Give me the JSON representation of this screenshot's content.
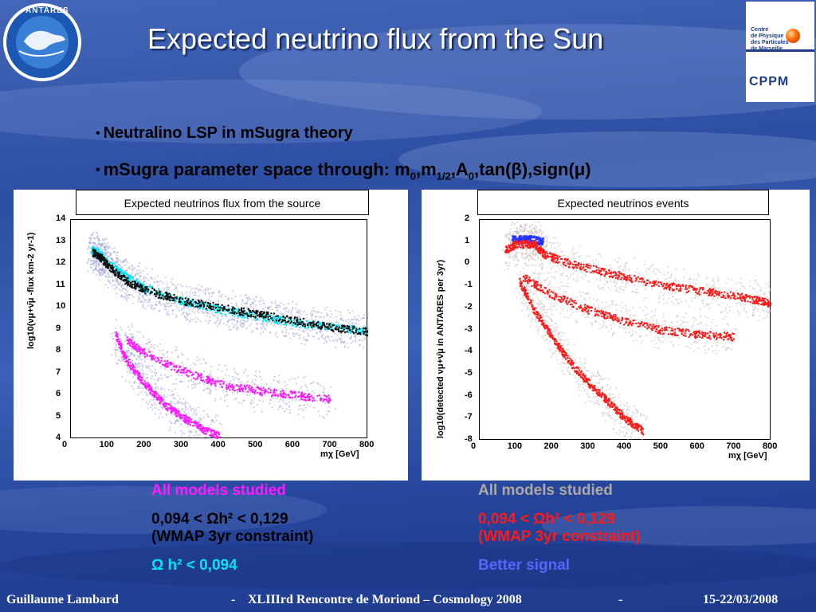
{
  "title": "Expected neutrino flux from the Sun",
  "logos": {
    "left_text": "ANTARES",
    "right_lines": [
      "Centre",
      "de Physique",
      "des Particules",
      "de Marseille"
    ],
    "right_word": "CPPM"
  },
  "bullets": {
    "b1": "Neutralino LSP in mSugra theory",
    "b2_text": "mSugra parameter space through: m",
    "b2_sub0": "0",
    "b2_m": ",m",
    "b2_sub12": "1/2",
    "b2_a": ",A",
    "b2_suba0": "0",
    "b2_tail": ",tan(β),sign(μ)"
  },
  "panels": {
    "left_title": "Expected neutrinos flux from the source",
    "right_title": "Expected neutrinos events"
  },
  "chart_data": [
    {
      "type": "scatter",
      "title": "Expected neutrinos flux from the source",
      "xlabel": "mχ [GeV]",
      "ylabel": "log10(νμ+ν̄μ -flux km-2 yr-1)",
      "xlim": [
        0,
        800
      ],
      "ylim": [
        4,
        14
      ],
      "xticks": [
        "0",
        "100",
        "200",
        "300",
        "400",
        "500",
        "600",
        "700",
        "800"
      ],
      "yticks": [
        "4",
        "5",
        "6",
        "7",
        "8",
        "9",
        "10",
        "11",
        "12",
        "13",
        "14"
      ],
      "series": [
        {
          "color": "#00e5f0",
          "x": [
            55,
            75,
            100,
            150,
            200,
            300,
            400,
            500,
            600,
            700,
            800
          ],
          "y": [
            12.6,
            12.5,
            12.0,
            11.4,
            10.9,
            10.3,
            9.9,
            9.6,
            9.3,
            9.1,
            8.9
          ]
        },
        {
          "color": "#111111",
          "x": [
            60,
            80,
            100,
            150,
            200,
            300,
            400,
            500,
            600,
            700,
            800
          ],
          "y": [
            12.5,
            12.3,
            11.9,
            11.2,
            10.8,
            10.3,
            10.0,
            9.7,
            9.4,
            9.1,
            8.9
          ]
        },
        {
          "color": "#ff1aff",
          "x": [
            120,
            150,
            200,
            250,
            300,
            350,
            400
          ],
          "y": [
            8.8,
            7.6,
            6.5,
            5.6,
            5.0,
            4.5,
            4.1
          ]
        },
        {
          "color": "#ff1aff",
          "x": [
            150,
            200,
            300,
            400,
            500,
            600,
            700
          ],
          "y": [
            8.5,
            7.9,
            7.1,
            6.5,
            6.2,
            6.0,
            5.8
          ]
        }
      ]
    },
    {
      "type": "scatter",
      "title": "Expected neutrinos events",
      "xlabel": "mχ [GeV]",
      "ylabel": "log10(detected νμ+ν̄μ in ANTARES per 3yr)",
      "xlim": [
        0,
        800
      ],
      "ylim": [
        -8,
        2
      ],
      "xticks": [
        "0",
        "100",
        "200",
        "300",
        "400",
        "500",
        "600",
        "700",
        "800"
      ],
      "yticks": [
        "2",
        "1",
        "0",
        "-1",
        "-2",
        "-3",
        "-4",
        "-5",
        "-6",
        "-7",
        "-8"
      ],
      "series": [
        {
          "color": "#2233ff",
          "x": [
            90,
            120,
            150,
            175
          ],
          "y": [
            1.1,
            1.1,
            1.1,
            1.0
          ]
        },
        {
          "color": "#ff1a1a",
          "x": [
            70,
            100,
            150,
            180,
            250,
            350,
            450,
            550,
            650,
            750,
            800
          ],
          "y": [
            0.6,
            0.9,
            0.9,
            0.4,
            0.0,
            -0.4,
            -0.8,
            -1.1,
            -1.3,
            -1.6,
            -1.8
          ]
        },
        {
          "color": "#ff1a1a",
          "x": [
            110,
            150,
            200,
            250,
            300,
            350,
            400,
            450
          ],
          "y": [
            -0.8,
            -2.1,
            -3.3,
            -4.5,
            -5.4,
            -6.2,
            -7.0,
            -7.6
          ]
        },
        {
          "color": "#ff1a1a",
          "x": [
            120,
            200,
            300,
            400,
            500,
            600,
            700
          ],
          "y": [
            -0.6,
            -1.4,
            -2.1,
            -2.6,
            -3.0,
            -3.2,
            -3.3
          ]
        }
      ]
    }
  ],
  "legend_left": {
    "l1": "All models studied",
    "l2a": "0,094 < Ωh² < 0,129",
    "l2b": "(WMAP 3yr constraint)",
    "l3": "Ω h² < 0,094",
    "c1": "#ff1aff",
    "c2": "#000000",
    "c3": "#00e5f0"
  },
  "legend_right": {
    "l1": "All models studied",
    "l2a": "0,094 < Ωh² < 0,129",
    "l2b": "(WMAP 3yr constraint)",
    "l3": "Better signal",
    "c1": "#b0a8a0",
    "c2": "#ff1a1a",
    "c3": "#5566ff"
  },
  "footer": {
    "author": "Guillaume Lambard",
    "sep1": "-",
    "conf": "XLIIIrd    Rencontre de Moriond – Cosmology 2008",
    "sep2": "-",
    "date": "15-22/03/2008"
  }
}
